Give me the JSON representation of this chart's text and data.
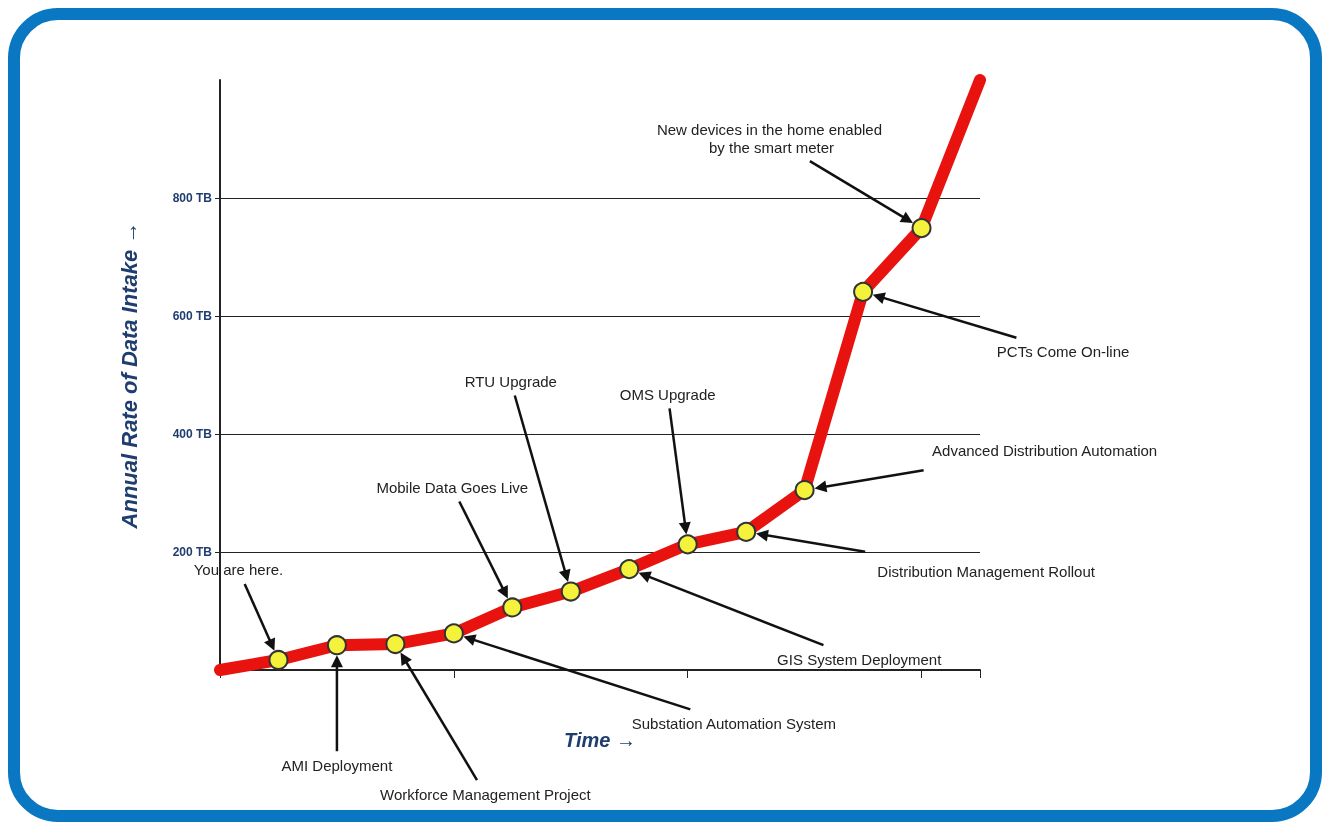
{
  "chart_data": {
    "type": "line",
    "xlabel": "Time →",
    "ylabel": "Annual Rate of Data Intake →",
    "categories": [
      null,
      null,
      null,
      null,
      null,
      null,
      null,
      null,
      null,
      null,
      null,
      null,
      null,
      null
    ],
    "series": [
      {
        "color": "#e8130f",
        "values": [
          0,
          17,
          42,
          44,
          62,
          106,
          133,
          171,
          213,
          234,
          305,
          641,
          749,
          1000
        ]
      }
    ],
    "ylim": [
      0,
      1000
    ],
    "yticks": [
      {
        "value": 200,
        "label": "200 TB"
      },
      {
        "value": 400,
        "label": "400 TB"
      },
      {
        "value": 600,
        "label": "600 TB"
      },
      {
        "value": 800,
        "label": "800 TB"
      }
    ],
    "grid": "y",
    "marker": "circle",
    "tick_labels": "y",
    "annotations": [
      "You are here.",
      "AMI Deployment",
      "Workforce Management Project",
      "Substation Automation System",
      "Mobile Data Goes Live",
      "RTU Upgrade",
      "GIS System Deployment",
      "OMS Upgrade",
      "Distribution Management Rollout",
      "Advanced Distribution Automation",
      "PCTs Come On-line",
      "New devices in the home enabled by the smart meter"
    ]
  }
}
